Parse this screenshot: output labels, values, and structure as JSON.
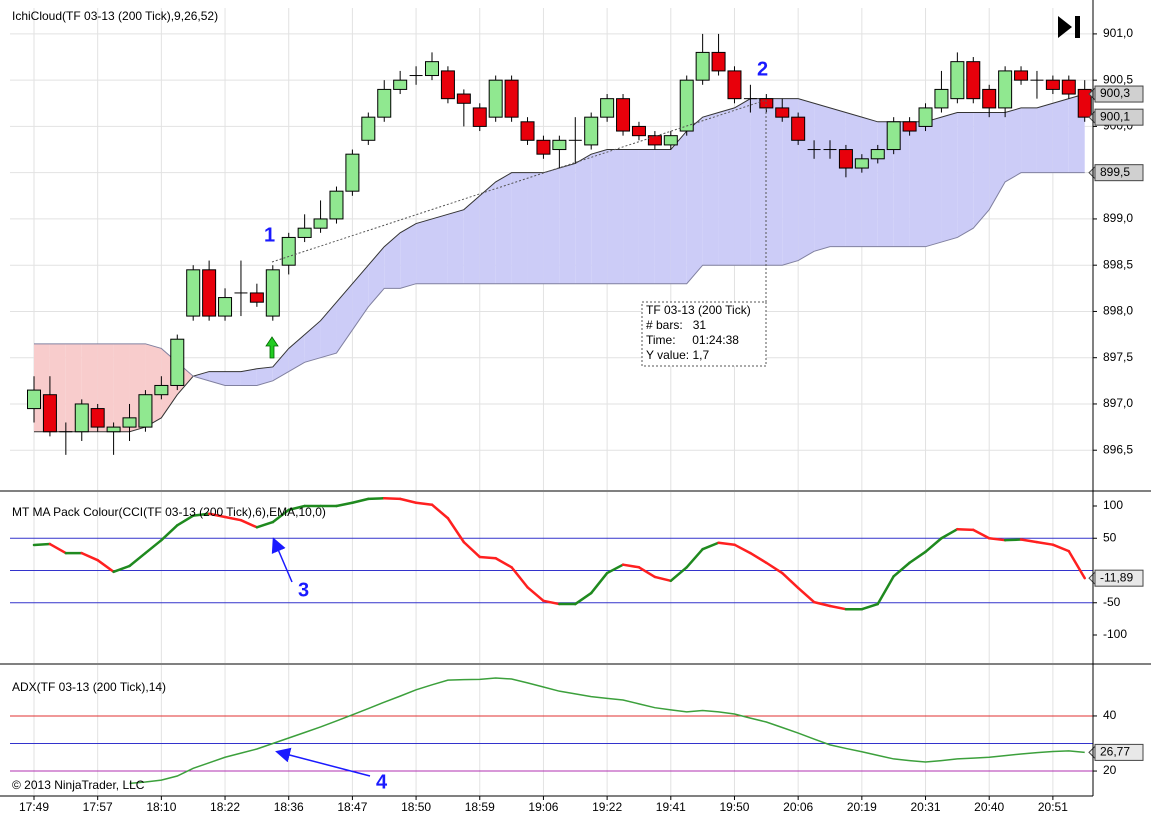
{
  "chart_data": [
    {
      "type": "candlestick",
      "title": "IchiCloud(TF 03-13 (200 Tick),9,26,52)",
      "categories": [
        "17:49",
        null,
        null,
        null,
        "17:57",
        null,
        null,
        null,
        "18:10",
        null,
        null,
        null,
        "18:22",
        null,
        null,
        null,
        "18:36",
        null,
        null,
        null,
        "18:47",
        null,
        null,
        null,
        "18:50",
        null,
        null,
        null,
        "18:59",
        null,
        null,
        null,
        "19:06",
        null,
        null,
        null,
        "19:22",
        null,
        null,
        null,
        "19:41",
        null,
        null,
        null,
        "19:50",
        null,
        null,
        null,
        "20:06",
        null,
        null,
        null,
        "20:19",
        null,
        null,
        null,
        "20:31",
        null,
        null,
        null,
        "20:40",
        null,
        null,
        null,
        "20:51",
        null,
        null
      ],
      "open": [
        896.95,
        897.1,
        896.7,
        896.7,
        896.95,
        896.7,
        896.75,
        896.75,
        897.1,
        897.2,
        897.95,
        898.45,
        897.95,
        898.2,
        898.2,
        897.95,
        898.5,
        898.8,
        898.9,
        899.0,
        899.3,
        899.85,
        900.1,
        900.4,
        900.55,
        900.55,
        900.6,
        900.35,
        900.2,
        900.1,
        900.5,
        900.05,
        899.85,
        899.75,
        899.85,
        899.8,
        900.1,
        900.3,
        900.0,
        899.9,
        899.8,
        899.95,
        900.5,
        900.8,
        900.6,
        900.3,
        900.3,
        900.2,
        900.1,
        899.75,
        899.75,
        899.75,
        899.55,
        899.65,
        899.75,
        900.05,
        900.0,
        900.2,
        900.3,
        900.7,
        900.4,
        900.2,
        900.6,
        900.5,
        900.5,
        900.5,
        900.4
      ],
      "high": [
        897.3,
        897.3,
        896.8,
        897.05,
        897.0,
        896.8,
        897.0,
        897.15,
        897.3,
        897.75,
        898.5,
        898.55,
        898.25,
        898.55,
        898.3,
        898.5,
        898.85,
        899.05,
        899.2,
        899.35,
        899.75,
        900.15,
        900.5,
        900.6,
        900.65,
        900.8,
        900.65,
        900.4,
        900.25,
        900.55,
        900.55,
        900.1,
        899.9,
        899.9,
        900.1,
        900.15,
        900.35,
        900.35,
        900.05,
        899.95,
        899.95,
        900.55,
        901.0,
        901.0,
        900.65,
        900.45,
        900.35,
        900.3,
        900.15,
        899.85,
        899.85,
        899.8,
        899.7,
        899.8,
        900.1,
        900.1,
        900.25,
        900.6,
        900.8,
        900.75,
        900.45,
        900.65,
        900.65,
        900.6,
        900.55,
        900.55,
        900.5
      ],
      "low": [
        896.8,
        896.65,
        896.45,
        896.6,
        896.7,
        896.45,
        896.6,
        896.7,
        897.05,
        897.15,
        897.9,
        897.9,
        897.9,
        897.95,
        898.05,
        897.9,
        898.4,
        898.75,
        898.85,
        898.95,
        899.25,
        899.8,
        900.05,
        900.35,
        900.45,
        900.5,
        900.25,
        900.0,
        899.95,
        900.05,
        900.05,
        899.8,
        899.65,
        899.55,
        899.6,
        899.75,
        900.05,
        899.9,
        899.85,
        899.75,
        899.75,
        899.9,
        900.45,
        900.55,
        900.25,
        900.15,
        900.15,
        900.05,
        899.8,
        899.65,
        899.65,
        899.45,
        899.5,
        899.6,
        899.7,
        899.9,
        899.95,
        900.15,
        900.25,
        900.25,
        900.1,
        900.1,
        900.45,
        900.3,
        900.35,
        900.3,
        900.05
      ],
      "close": [
        897.15,
        896.7,
        896.7,
        897.0,
        896.75,
        896.75,
        896.85,
        897.1,
        897.2,
        897.7,
        898.45,
        897.95,
        898.15,
        898.2,
        898.1,
        898.45,
        898.8,
        898.9,
        899.0,
        899.3,
        899.7,
        900.1,
        900.4,
        900.5,
        900.55,
        900.7,
        900.3,
        900.25,
        900.0,
        900.5,
        900.1,
        899.85,
        899.7,
        899.85,
        899.85,
        900.1,
        900.3,
        899.95,
        899.9,
        899.8,
        899.9,
        900.5,
        900.8,
        900.6,
        900.3,
        900.3,
        900.2,
        900.1,
        899.85,
        899.75,
        899.75,
        899.55,
        899.65,
        899.75,
        900.05,
        899.95,
        900.2,
        900.4,
        900.7,
        900.3,
        900.2,
        900.6,
        900.5,
        900.5,
        900.4,
        900.35,
        900.1
      ],
      "up_color": "#90e890",
      "down_color": "#e8000b",
      "last_label": "900,1",
      "span_a": {
        "color": "#333333",
        "last_label": "900,3",
        "values": [
          896.7,
          896.7,
          896.7,
          896.7,
          896.7,
          896.7,
          896.7,
          896.75,
          896.85,
          897.1,
          897.3,
          897.35,
          897.35,
          897.35,
          897.38,
          897.4,
          897.6,
          897.75,
          897.9,
          898.1,
          898.3,
          898.5,
          898.7,
          898.85,
          898.95,
          899.0,
          899.05,
          899.1,
          899.25,
          899.4,
          899.5,
          899.5,
          899.5,
          899.55,
          899.6,
          899.7,
          899.75,
          899.75,
          899.75,
          899.75,
          899.75,
          899.95,
          900.1,
          900.15,
          900.2,
          900.3,
          900.3,
          900.3,
          900.3,
          900.25,
          900.2,
          900.15,
          900.1,
          900.05,
          900.05,
          900.05,
          900.05,
          900.1,
          900.15,
          900.15,
          900.15,
          900.15,
          900.2,
          900.2,
          900.25,
          900.3,
          900.35
        ]
      },
      "span_b": {
        "color": "#8080a0",
        "last_label": "899,5",
        "values": [
          897.65,
          897.65,
          897.65,
          897.65,
          897.65,
          897.65,
          897.65,
          897.65,
          897.6,
          897.45,
          897.3,
          897.25,
          897.2,
          897.2,
          897.2,
          897.25,
          897.35,
          897.45,
          897.5,
          897.55,
          897.8,
          898.05,
          898.25,
          898.25,
          898.3,
          898.3,
          898.3,
          898.3,
          898.3,
          898.3,
          898.3,
          898.3,
          898.3,
          898.3,
          898.3,
          898.3,
          898.3,
          898.3,
          898.3,
          898.3,
          898.3,
          898.3,
          898.5,
          898.5,
          898.5,
          898.5,
          898.5,
          898.5,
          898.55,
          898.65,
          898.7,
          898.7,
          898.7,
          898.7,
          898.7,
          898.7,
          898.7,
          898.75,
          898.8,
          898.9,
          899.1,
          899.4,
          899.5,
          899.5,
          899.5,
          899.5,
          899.5
        ]
      },
      "cloud_up_color": "#ccccf7",
      "cloud_down_color": "#f8cccc",
      "ylim": [
        896.07,
        901.28
      ],
      "yticks": [
        {
          "value": 896.5,
          "label": "896,5"
        },
        {
          "value": 897.0,
          "label": "897,0"
        },
        {
          "value": 897.5,
          "label": "897,5"
        },
        {
          "value": 898.0,
          "label": "898,0"
        },
        {
          "value": 898.5,
          "label": "898,5"
        },
        {
          "value": 899.0,
          "label": "899,0"
        },
        {
          "value": 899.5,
          "label": "899,5"
        },
        {
          "value": 900.0,
          "label": "900,0"
        },
        {
          "value": 900.5,
          "label": "900,5"
        },
        {
          "value": 901.0,
          "label": "901,0"
        }
      ],
      "grid": true,
      "annotations": [
        "1",
        "2"
      ],
      "tooltip": [
        "TF 03-13 (200 Tick)",
        "# bars:   31",
        "Time:     01:24:38",
        "Y value: 1,7"
      ]
    },
    {
      "type": "line",
      "title": "MT MA Pack Colour(CCI(TF 03-13 (200 Tick),6),EMA,10,0)",
      "values": [
        39.5,
        41,
        27,
        27,
        16,
        -2,
        7,
        27,
        47,
        70,
        85,
        88,
        83,
        78,
        67,
        75,
        94,
        100,
        100,
        100,
        105,
        111,
        112,
        111,
        105,
        102,
        81,
        44,
        21,
        19,
        5,
        -26,
        -47,
        -52,
        -52,
        -35,
        -4,
        9,
        5,
        -10,
        -16,
        5,
        33,
        43,
        40,
        27,
        12,
        -4,
        -27,
        -49,
        -55,
        -60,
        -60,
        -52,
        -9,
        12,
        29,
        50,
        64,
        63,
        50,
        47,
        48,
        44,
        40,
        30,
        -11.89
      ],
      "up_color": "#1f8a1f",
      "down_color": "#ff2020",
      "last_label": "-11,89",
      "ylim": [
        -143.4,
        121.7
      ],
      "yticks": [
        100,
        50,
        -50,
        -100
      ],
      "hlines": [
        {
          "value": 50,
          "color": "#3333cc"
        },
        {
          "value": 0,
          "color": "#3333cc"
        },
        {
          "value": -50,
          "color": "#3333cc"
        }
      ],
      "annotation": "3"
    },
    {
      "type": "line",
      "title": "ADX(TF 03-13 (200 Tick),14)",
      "values": [
        null,
        null,
        null,
        null,
        null,
        null,
        15.5,
        16,
        16.7,
        18.2,
        21,
        23,
        25,
        26.5,
        28,
        30,
        32,
        34,
        36,
        38.2,
        40.4,
        42.7,
        45,
        47.2,
        49.5,
        51.3,
        53,
        53.2,
        53.3,
        53.8,
        53.4,
        52,
        50.5,
        49,
        48,
        47,
        46.4,
        45.8,
        44.4,
        43,
        42.2,
        41.5,
        42,
        41.5,
        40.7,
        39.2,
        37.8,
        35.8,
        33.8,
        31.6,
        29.5,
        28.2,
        27,
        25.7,
        24.4,
        23.8,
        23.3,
        23.8,
        24.4,
        24.7,
        25,
        25.6,
        26.2,
        26.7,
        27.1,
        27.3,
        26.77
      ],
      "color": "#3ca03c",
      "last_label": "26,77",
      "ylim": [
        11.3,
        58.5
      ],
      "yticks": [
        40,
        20
      ],
      "hlines": [
        {
          "value": 40,
          "color": "#e03030"
        },
        {
          "value": 30,
          "color": "#3333cc"
        },
        {
          "value": 20,
          "color": "#b030b0"
        }
      ],
      "annotation": "4",
      "copyright": "© 2013 NinjaTrader, LLC"
    }
  ]
}
